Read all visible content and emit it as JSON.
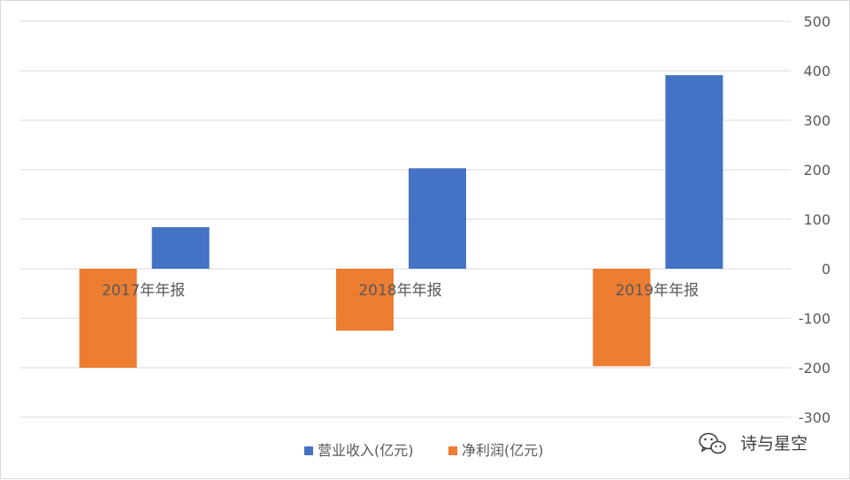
{
  "chart_data": {
    "type": "bar",
    "categories": [
      "2017年年报",
      "2018年年报",
      "2019年年报"
    ],
    "series": [
      {
        "name": "营业收入(亿元)",
        "color": "#4472C4",
        "values": [
          84,
          203,
          391
        ]
      },
      {
        "name": "净利润(亿元)",
        "color": "#ED7D31",
        "values": [
          -200,
          -125,
          -197
        ]
      }
    ],
    "ylim": [
      -300,
      500
    ],
    "yticks": [
      500,
      400,
      300,
      200,
      100,
      0,
      -100,
      -200,
      -300
    ],
    "ytick_labels": [
      "500",
      "400",
      "300",
      "200",
      "100",
      "0",
      "-100",
      "-200",
      "-300"
    ],
    "y_axis_side": "right",
    "grid": true,
    "legend_position": "bottom"
  },
  "watermark": {
    "text": "诗与星空",
    "icon": "wechat-icon"
  }
}
